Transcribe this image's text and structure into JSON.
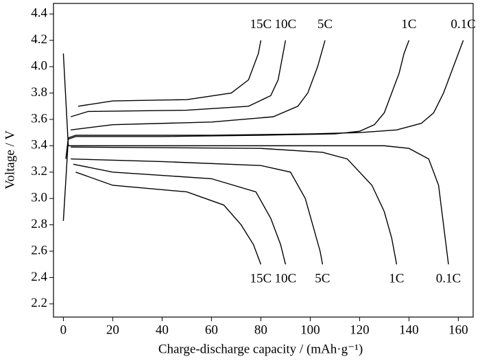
{
  "chart_data": {
    "type": "line",
    "xlabel": "Charge-discharge capacity / (mAh·g⁻¹)",
    "ylabel": "Voltage / V",
    "xlim": [
      -4,
      166
    ],
    "ylim": [
      2.1,
      4.48
    ],
    "xticks": [
      0,
      20,
      40,
      60,
      80,
      100,
      120,
      140,
      160
    ],
    "yticks": [
      2.2,
      2.4,
      2.6,
      2.8,
      {
        "value": 3,
        "label": "3.0"
      },
      3.2,
      3.4,
      3.6,
      3.8,
      {
        "value": 4,
        "label": "4.0"
      },
      4.2,
      4.4
    ],
    "series": [
      {
        "name": "15C",
        "color": "#000000",
        "x": [
          6,
          20,
          50,
          68,
          75,
          77,
          79,
          80
        ],
        "values": [
          3.7,
          3.74,
          3.75,
          3.8,
          3.9,
          4.0,
          4.1,
          4.2
        ]
      },
      {
        "name": "10C",
        "color": "#000000",
        "x": [
          3,
          10,
          50,
          75,
          84,
          87,
          89,
          90
        ],
        "values": [
          3.62,
          3.66,
          3.67,
          3.7,
          3.78,
          3.9,
          4.1,
          4.2
        ]
      },
      {
        "name": "5C",
        "color": "#000000",
        "x": [
          3,
          20,
          60,
          85,
          95,
          99,
          103,
          106
        ],
        "values": [
          3.52,
          3.56,
          3.58,
          3.62,
          3.7,
          3.8,
          4.0,
          4.2
        ]
      },
      {
        "name": "1C",
        "color": "#000000",
        "x": [
          0,
          2,
          5,
          40,
          80,
          110,
          120,
          126,
          130,
          133,
          136,
          138,
          140
        ],
        "values": [
          2.83,
          3.45,
          3.47,
          3.47,
          3.48,
          3.49,
          3.51,
          3.56,
          3.65,
          3.8,
          3.95,
          4.1,
          4.2
        ]
      },
      {
        "name": "0.1C",
        "color": "#000000",
        "x": [
          1,
          2,
          5,
          20,
          60,
          100,
          120,
          135,
          145,
          150,
          154,
          157,
          160,
          162
        ],
        "values": [
          3.3,
          3.46,
          3.48,
          3.48,
          3.48,
          3.49,
          3.5,
          3.52,
          3.57,
          3.65,
          3.8,
          3.95,
          4.1,
          4.2
        ]
      },
      {
        "name": "15C",
        "color": "#000000",
        "x": [
          5,
          20,
          50,
          65,
          72,
          77,
          80
        ],
        "values": [
          3.2,
          3.1,
          3.05,
          2.95,
          2.8,
          2.65,
          2.5
        ]
      },
      {
        "name": "10C",
        "color": "#000000",
        "x": [
          4,
          20,
          60,
          78,
          84,
          88,
          90
        ],
        "values": [
          3.26,
          3.2,
          3.15,
          3.05,
          2.85,
          2.65,
          2.5
        ]
      },
      {
        "name": "5C",
        "color": "#000000",
        "x": [
          3,
          40,
          80,
          92,
          98,
          101,
          104,
          105
        ],
        "values": [
          3.3,
          3.28,
          3.25,
          3.2,
          3.0,
          2.8,
          2.6,
          2.5
        ]
      },
      {
        "name": "1C",
        "color": "#000000",
        "x": [
          3,
          80,
          105,
          115,
          125,
          130,
          133,
          135
        ],
        "values": [
          3.39,
          3.38,
          3.35,
          3.3,
          3.1,
          2.9,
          2.7,
          2.5
        ]
      },
      {
        "name": "0.1C",
        "color": "#000000",
        "x": [
          0,
          2,
          60,
          130,
          140,
          148,
          152,
          154,
          156
        ],
        "values": [
          4.1,
          3.4,
          3.4,
          3.4,
          3.38,
          3.3,
          3.1,
          2.8,
          2.5
        ]
      }
    ]
  }
}
